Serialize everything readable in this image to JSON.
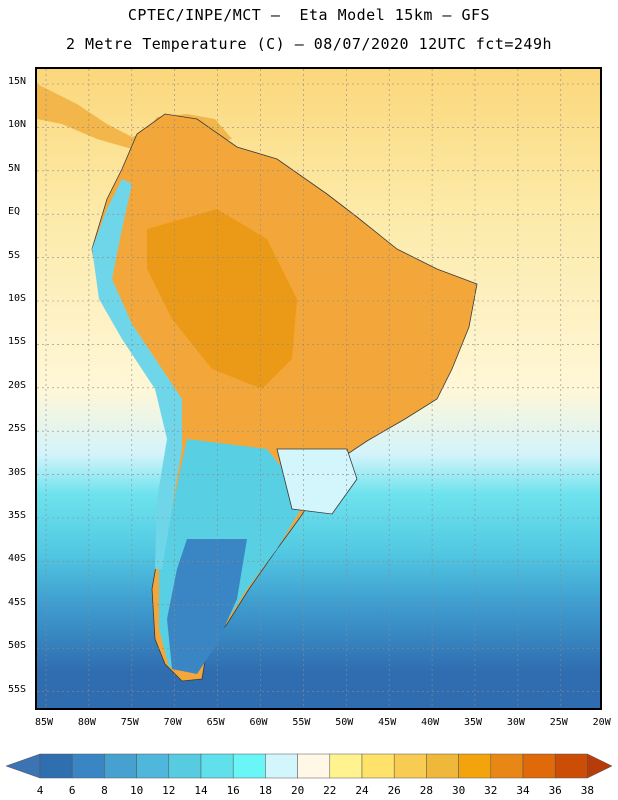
{
  "title_line1": "CPTEC/INPE/MCT –  Eta Model 15km – GFS",
  "title_line2": "2 Metre Temperature (C) – 08/07/2020 12UTC fct=249h",
  "lat_labels": [
    "15N",
    "10N",
    "5N",
    "EQ",
    "5S",
    "10S",
    "15S",
    "20S",
    "25S",
    "30S",
    "35S",
    "40S",
    "45S",
    "50S",
    "55S"
  ],
  "lon_labels": [
    "85W",
    "80W",
    "75W",
    "70W",
    "65W",
    "60W",
    "55W",
    "50W",
    "45W",
    "40W",
    "35W",
    "30W",
    "25W",
    "20W"
  ],
  "colorbar": {
    "values": [
      "4",
      "6",
      "8",
      "10",
      "12",
      "14",
      "16",
      "18",
      "20",
      "22",
      "24",
      "26",
      "28",
      "30",
      "32",
      "34",
      "36",
      "38"
    ],
    "colors": [
      "#2f6fb0",
      "#3a86c4",
      "#46a1d0",
      "#4fb7dc",
      "#57cce0",
      "#5fe0ea",
      "#6af6f6",
      "#d2f6fb",
      "#fff8e6",
      "#fff38f",
      "#ffe26a",
      "#f8cc52",
      "#f0b83a",
      "#f3a40d",
      "#e98716",
      "#e06a09",
      "#cc4d05"
    ],
    "left_arrow_color": "#3c73b3",
    "right_arrow_color": "#b73c0a"
  },
  "map": {
    "ocean_gradient": [
      "#fbd77b",
      "#fce9a4",
      "#fff7d8",
      "#d3f3fb",
      "#6ee3ee",
      "#52c9e2",
      "#3f9ed0",
      "#2f6cb0"
    ],
    "land_warm": "#f3a73a",
    "land_hot": "#eb9a18",
    "andes_cool": "#6fd6ea",
    "patagonia": "#3a86c4"
  }
}
